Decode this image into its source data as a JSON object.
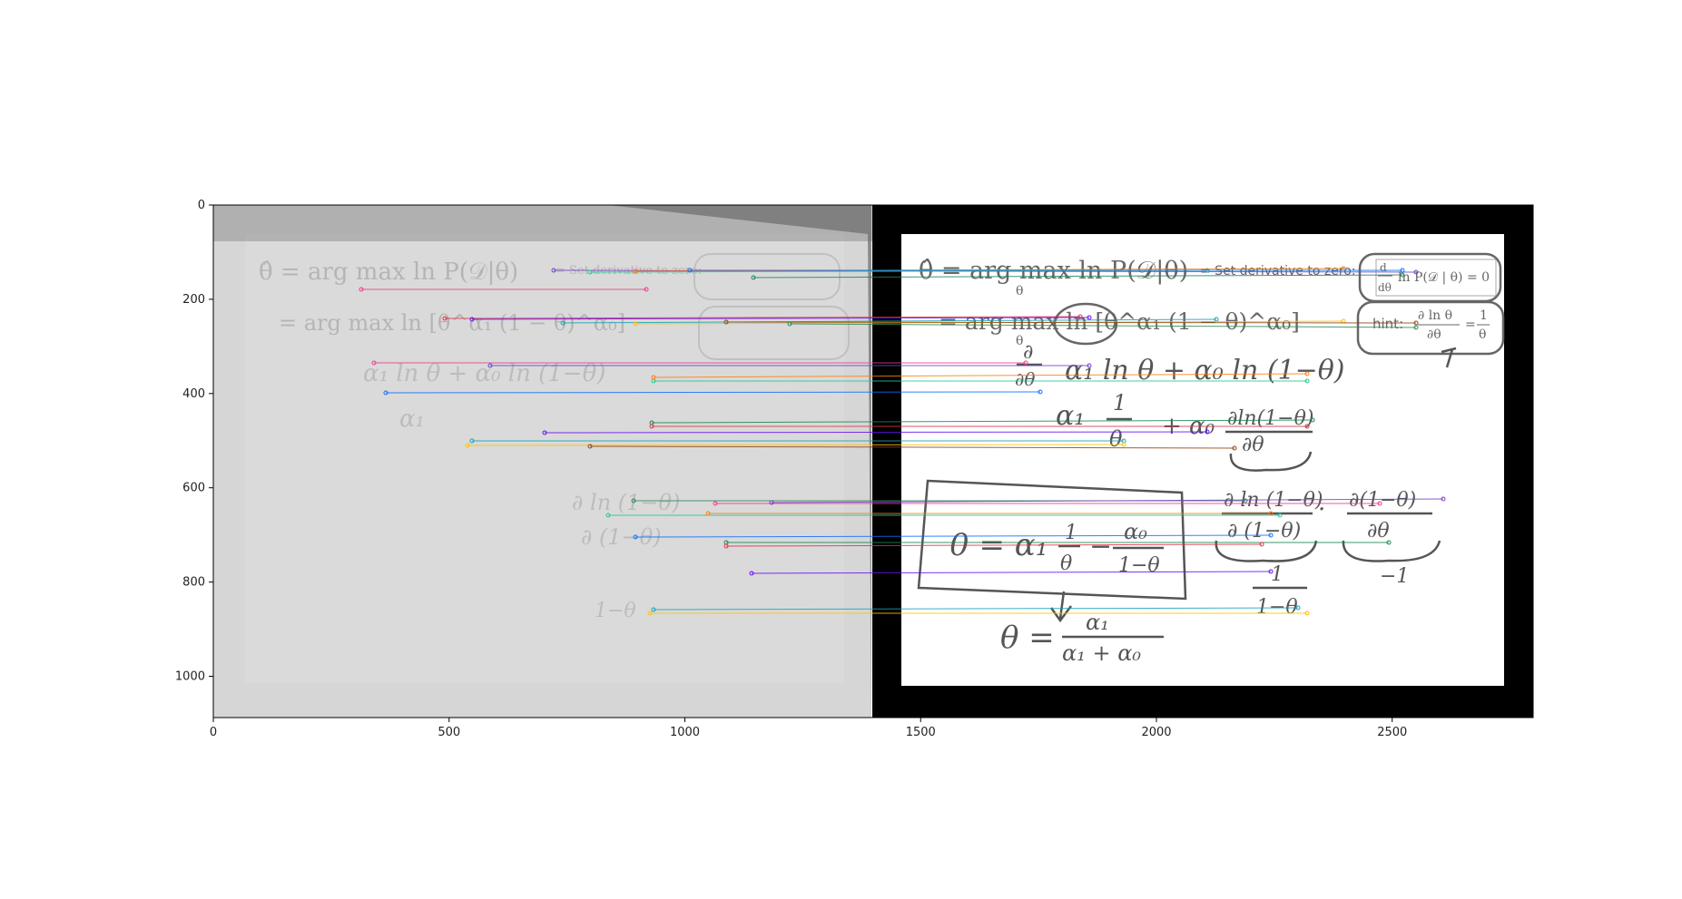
{
  "axes": {
    "xticks": [
      "0",
      "500",
      "1000",
      "1500",
      "2000",
      "2500"
    ],
    "yticks": [
      "0",
      "200",
      "400",
      "600",
      "800",
      "1000"
    ],
    "colors": {
      "frame": "#000000",
      "tick_text": "#222222"
    }
  },
  "whiteboard": {
    "typed_eq1": "θ̂ = arg max  ln P(𝒟|θ)",
    "typed_eq1_sub": "θ",
    "typed_eq2": "= arg max  ln [θ^α₁ (1 − θ)^α₀]",
    "typed_eq2_sub": "θ",
    "note_set_derivative": "= Set derivative to zero:",
    "box_eq": "d/dθ ln P(𝒟 | θ) = 0",
    "box_eq_num": "d",
    "box_eq_den": "dθ",
    "box_eq_rest": "ln P(𝒟 | θ) = 0",
    "hint_label": "hint:",
    "hint_num": "∂ ln θ",
    "hint_den": "∂θ",
    "hint_eq": "=",
    "hint_rhs_num": "1",
    "hint_rhs_den": "θ",
    "hand_partial_num": "∂",
    "hand_partial_den": "∂θ",
    "hand_line1": "α₁ ln θ + α₀ ln (1−θ)",
    "hand_line2a": "α₁",
    "hand_line2_num": "1",
    "hand_line2_den": "θ",
    "hand_line2b": "+ α₀",
    "hand_line2_frac_num": "∂ln(1−θ)",
    "hand_line2_frac_den": "∂θ",
    "hand_chain_num1": "∂ ln (1−θ)",
    "hand_chain_den1": "∂ (1−θ)",
    "hand_chain_dot": "·",
    "hand_chain_num2": "∂(1−θ)",
    "hand_chain_den2": "∂θ",
    "hand_chain_under1_num": "1",
    "hand_chain_under1_den": "1−θ",
    "hand_chain_under2": "−1",
    "boxed_result": "0 = α₁ 1/θ − α₀/(1−θ)",
    "boxed_lhs": "0 = α₁",
    "boxed_f1_num": "1",
    "boxed_f1_den": "θ",
    "boxed_minus": "−",
    "boxed_f2_num": "α₀",
    "boxed_f2_den": "1−θ",
    "final_lhs": "θ =",
    "final_num": "α₁",
    "final_den": "α₁ + α₀"
  },
  "match_line_colors": [
    "#e83e8c",
    "#6f42c1",
    "#20c997",
    "#fd7e14",
    "#0d6efd",
    "#198754",
    "#dc3545",
    "#6610f2",
    "#17a2b8",
    "#ffc107",
    "#8b4513",
    "#2e8b57"
  ]
}
